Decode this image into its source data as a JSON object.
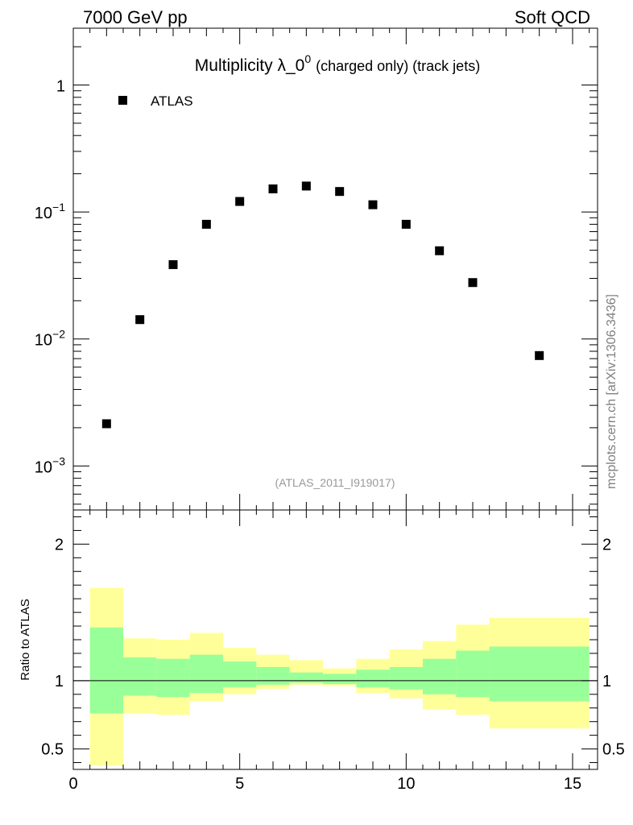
{
  "header": {
    "left": "7000 GeV pp",
    "right": "Soft QCD"
  },
  "side_label": "mcplots.cern.ch [arXiv:1306.3436]",
  "chart_data": {
    "type": "scatter",
    "title_main": "Multiplicity λ_0",
    "title_sup": "0",
    "title_suffix": "(charged only) (track jets)",
    "analysis_id": "(ATLAS_2011_I919017)",
    "legend": {
      "position": "top-left",
      "entries": [
        "ATLAS"
      ]
    },
    "x_range": [
      0,
      15.75
    ],
    "main_panel": {
      "y_scale": "log",
      "y_range": [
        0.00045,
        2.8
      ],
      "y_ticks": [
        {
          "value": 1,
          "label": "1",
          "sup": ""
        },
        {
          "value": 0.1,
          "label": "10",
          "sup": "−1"
        },
        {
          "value": 0.01,
          "label": "10",
          "sup": "−2"
        },
        {
          "value": 0.001,
          "label": "10",
          "sup": "−3"
        }
      ],
      "series": [
        {
          "name": "ATLAS",
          "color": "#000000",
          "marker": "square",
          "x": [
            1,
            2,
            3,
            4,
            5,
            6,
            7,
            8,
            9,
            10,
            11,
            12,
            14
          ],
          "y": [
            0.00215,
            0.0142,
            0.0385,
            0.08,
            0.121,
            0.152,
            0.16,
            0.145,
            0.114,
            0.08,
            0.0495,
            0.0278,
            0.0074
          ]
        }
      ]
    },
    "ratio_panel": {
      "ylabel": "Ratio to ATLAS",
      "y_range": [
        0.35,
        2.25
      ],
      "y_ticks": [
        {
          "value": 0.5,
          "label": "0.5"
        },
        {
          "value": 1,
          "label": "1"
        },
        {
          "value": 2,
          "label": "2"
        }
      ],
      "reference_line": 1,
      "bins": [
        {
          "lo": 0.5,
          "hi": 1.5,
          "inner": [
            0.76,
            1.39
          ],
          "outer": [
            0.38,
            1.68
          ]
        },
        {
          "lo": 1.5,
          "hi": 2.5,
          "inner": [
            0.89,
            1.17
          ],
          "outer": [
            0.76,
            1.31
          ]
        },
        {
          "lo": 2.5,
          "hi": 3.5,
          "inner": [
            0.88,
            1.16
          ],
          "outer": [
            0.75,
            1.3
          ]
        },
        {
          "lo": 3.5,
          "hi": 4.5,
          "inner": [
            0.91,
            1.19
          ],
          "outer": [
            0.85,
            1.35
          ]
        },
        {
          "lo": 4.5,
          "hi": 5.5,
          "inner": [
            0.95,
            1.14
          ],
          "outer": [
            0.9,
            1.24
          ]
        },
        {
          "lo": 5.5,
          "hi": 6.5,
          "inner": [
            0.97,
            1.1
          ],
          "outer": [
            0.94,
            1.19
          ]
        },
        {
          "lo": 6.5,
          "hi": 7.5,
          "inner": [
            0.985,
            1.06
          ],
          "outer": [
            0.97,
            1.15
          ]
        },
        {
          "lo": 7.5,
          "hi": 8.5,
          "inner": [
            0.975,
            1.05
          ],
          "outer": [
            0.96,
            1.09
          ]
        },
        {
          "lo": 8.5,
          "hi": 9.5,
          "inner": [
            0.95,
            1.08
          ],
          "outer": [
            0.91,
            1.16
          ]
        },
        {
          "lo": 9.5,
          "hi": 10.5,
          "inner": [
            0.935,
            1.1
          ],
          "outer": [
            0.87,
            1.23
          ]
        },
        {
          "lo": 10.5,
          "hi": 11.5,
          "inner": [
            0.9,
            1.16
          ],
          "outer": [
            0.79,
            1.29
          ]
        },
        {
          "lo": 11.5,
          "hi": 12.5,
          "inner": [
            0.88,
            1.22
          ],
          "outer": [
            0.75,
            1.41
          ]
        },
        {
          "lo": 12.5,
          "hi": 15.5,
          "inner": [
            0.85,
            1.25
          ],
          "outer": [
            0.65,
            1.46
          ]
        }
      ],
      "inner_color": "#99ff99",
      "outer_color": "#ffff99"
    },
    "x_ticks": [
      {
        "value": 0,
        "label": "0"
      },
      {
        "value": 5,
        "label": "5"
      },
      {
        "value": 10,
        "label": "10"
      },
      {
        "value": 15,
        "label": "15"
      }
    ]
  }
}
